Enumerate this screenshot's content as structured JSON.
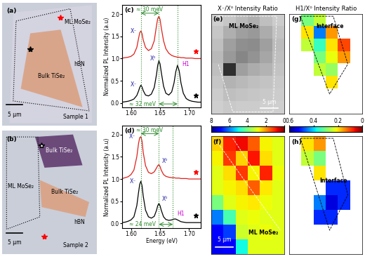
{
  "chart_data": [
    {
      "type": "image",
      "panel_label": "(a)",
      "texts": [
        "ML MoSe₂",
        "hBN",
        "Bulk TiSe₂",
        "Sample 1"
      ],
      "scale_bar": "5 μm"
    },
    {
      "type": "image",
      "panel_label": "(b)",
      "texts": [
        "Bulk TiSe₂",
        "ML MoSe₂",
        "Bulk TiSe₂",
        "hBN",
        "Sample 2"
      ],
      "scale_bar": "5 μm"
    },
    {
      "type": "line",
      "panel_label": "(c)",
      "x": [
        1.585,
        1.59,
        1.595,
        1.6,
        1.605,
        1.61,
        1.613,
        1.615,
        1.617,
        1.619,
        1.621,
        1.625,
        1.63,
        1.635,
        1.64,
        1.644,
        1.646,
        1.648,
        1.65,
        1.652,
        1.656,
        1.66,
        1.665,
        1.67,
        1.674,
        1.677,
        1.68,
        1.683,
        1.686,
        1.69,
        1.695,
        1.7,
        1.705,
        1.71,
        1.715,
        1.72
      ],
      "series": [
        {
          "color": "#e0201b",
          "values": [
            1.01,
            1.02,
            1.03,
            1.05,
            1.1,
            1.25,
            1.45,
            1.58,
            1.62,
            1.56,
            1.42,
            1.25,
            1.18,
            1.22,
            1.4,
            1.75,
            1.9,
            1.95,
            1.88,
            1.7,
            1.4,
            1.22,
            1.12,
            1.07,
            1.05,
            1.04,
            1.03,
            1.03,
            1.02,
            1.02,
            1.01,
            1.01,
            1.01,
            1.0,
            1.0,
            1.0
          ]
        },
        {
          "color": "#000000",
          "values": [
            0.02,
            0.03,
            0.04,
            0.06,
            0.09,
            0.17,
            0.27,
            0.35,
            0.4,
            0.36,
            0.28,
            0.18,
            0.16,
            0.2,
            0.35,
            0.65,
            0.85,
            0.95,
            0.88,
            0.7,
            0.38,
            0.22,
            0.18,
            0.25,
            0.45,
            0.7,
            0.85,
            0.72,
            0.45,
            0.22,
            0.1,
            0.06,
            0.04,
            0.03,
            0.02,
            0.02
          ]
        }
      ],
      "xlim": [
        1.585,
        1.72
      ],
      "xticks": [
        {
          "value": 1.6,
          "label": "1.60"
        },
        1.65,
        {
          "value": 1.7,
          "label": "1.70"
        }
      ],
      "ylim": [
        -0.1,
        2.2
      ],
      "yticks": [
        {
          "value": 0,
          "label": "0.0"
        },
        0.5,
        {
          "value": 1,
          "label": "1.0"
        },
        1.5,
        {
          "value": 2,
          "label": "2.0"
        }
      ],
      "ylabel": "Normalized PL Intensity (a.u)",
      "peak_lines": {
        "x": [
          1.617,
          1.648,
          1.68
        ],
        "color": "#2e8b2e"
      },
      "spacings": [
        {
          "from": 1.617,
          "to": 1.648,
          "y": 2.02,
          "color": "#2e8b2e"
        },
        {
          "from": 1.648,
          "to": 1.68,
          "y": -0.02,
          "color": "#2e8b2e"
        }
      ],
      "annotations": [
        {
          "text": "X⁻",
          "x": 1.604,
          "y": 1.62,
          "color": "#1f1fa0"
        },
        {
          "text": "X⁻",
          "x": 1.604,
          "y": 0.42,
          "color": "#1f1fa0"
        },
        {
          "text": "X⁰",
          "x": 1.638,
          "y": 1.0,
          "color": "#1f1fa0"
        },
        {
          "text": "H1",
          "x": 1.694,
          "y": 0.88,
          "color": "#cc00cc"
        },
        {
          "text": "≈ 30 meV",
          "x": 1.6325,
          "y": 2.1,
          "color": "#2e8b2e"
        },
        {
          "text": "≈ 32 meV",
          "x": 1.62,
          "y": -0.02,
          "color": "#2e8b2e"
        }
      ]
    },
    {
      "type": "line",
      "panel_label": "(d)",
      "x": [
        1.585,
        1.59,
        1.595,
        1.6,
        1.605,
        1.61,
        1.613,
        1.615,
        1.617,
        1.619,
        1.621,
        1.625,
        1.63,
        1.635,
        1.64,
        1.644,
        1.646,
        1.648,
        1.65,
        1.652,
        1.656,
        1.66,
        1.665,
        1.67,
        1.674,
        1.677,
        1.68,
        1.683,
        1.686,
        1.69,
        1.695,
        1.7,
        1.705,
        1.71,
        1.715,
        1.72
      ],
      "series": [
        {
          "color": "#e0201b",
          "values": [
            1.01,
            1.03,
            1.05,
            1.1,
            1.2,
            1.5,
            1.8,
            1.93,
            1.95,
            1.85,
            1.6,
            1.3,
            1.15,
            1.12,
            1.16,
            1.25,
            1.3,
            1.32,
            1.28,
            1.2,
            1.1,
            1.06,
            1.04,
            1.03,
            1.03,
            1.02,
            1.02,
            1.02,
            1.01,
            1.01,
            1.01,
            1.0,
            1.0,
            1.0,
            1.0,
            1.0
          ]
        },
        {
          "color": "#000000",
          "values": [
            0.02,
            0.03,
            0.05,
            0.08,
            0.15,
            0.4,
            0.7,
            0.88,
            0.95,
            0.85,
            0.62,
            0.3,
            0.15,
            0.12,
            0.16,
            0.3,
            0.4,
            0.45,
            0.4,
            0.3,
            0.15,
            0.09,
            0.07,
            0.08,
            0.1,
            0.1,
            0.08,
            0.06,
            0.04,
            0.03,
            0.02,
            0.02,
            0.02,
            0.02,
            0.02,
            0.02
          ]
        }
      ],
      "xlim": [
        1.585,
        1.72
      ],
      "xticks": [
        {
          "value": 1.6,
          "label": "1.60"
        },
        1.65,
        {
          "value": 1.7,
          "label": "1.70"
        }
      ],
      "ylim": [
        -0.1,
        2.2
      ],
      "yticks": [
        {
          "value": 0,
          "label": "0.0"
        },
        0.5,
        {
          "value": 1,
          "label": "1.0"
        },
        1.5,
        {
          "value": 2,
          "label": "2.0"
        }
      ],
      "xlabel": "Energy (eV)",
      "ylabel": "Normalized PL Intensity (a.u)",
      "peak_lines": {
        "x": [
          1.617,
          1.648,
          1.672
        ],
        "color": "#2e8b2e"
      },
      "spacings": [
        {
          "from": 1.617,
          "to": 1.648,
          "y": 2.02,
          "color": "#2e8b2e"
        },
        {
          "from": 1.648,
          "to": 1.672,
          "y": -0.02,
          "color": "#2e8b2e"
        }
      ],
      "annotations": [
        {
          "text": "X⁻",
          "x": 1.602,
          "y": 1.95,
          "color": "#1f1fa0"
        },
        {
          "text": "X⁰",
          "x": 1.658,
          "y": 1.4,
          "color": "#1f1fa0"
        },
        {
          "text": "X⁻",
          "x": 1.603,
          "y": 0.95,
          "color": "#1f1fa0"
        },
        {
          "text": "X⁰",
          "x": 1.658,
          "y": 0.55,
          "color": "#1f1fa0"
        },
        {
          "text": "H1",
          "x": 1.686,
          "y": 0.22,
          "color": "#cc00cc"
        },
        {
          "text": "≈ 30 meV",
          "x": 1.6325,
          "y": 2.1,
          "color": "#2e8b2e"
        },
        {
          "text": "≈ 24 meV",
          "x": 1.62,
          "y": -0.02,
          "color": "#2e8b2e"
        }
      ]
    },
    {
      "type": "colorbar",
      "title": "X⁻/X⁰ Intensity Ratio",
      "for": [
        "(e)",
        "(f)"
      ],
      "range": [
        8,
        0
      ],
      "ticks": [
        8,
        6,
        4,
        2,
        0
      ]
    },
    {
      "type": "colorbar",
      "title": "H1/X⁰ Intensity Ratio",
      "for": [
        "(g)",
        "(h)"
      ],
      "range": [
        0.6,
        0
      ],
      "ticks": [
        0.6,
        0.4,
        0.2,
        0
      ]
    },
    {
      "type": "heatmap",
      "panel_label": "(e)",
      "tick_labels": false,
      "texts": [
        "ML MoSe₂"
      ],
      "scale_bar": "5 μm",
      "cells": [
        [
          1.5,
          1.8,
          2.2,
          2.5,
          2.0,
          1.6
        ],
        [
          1.8,
          2.5,
          3.0,
          3.2,
          2.6,
          1.9
        ],
        [
          2.0,
          3.0,
          3.5,
          3.6,
          3.0,
          2.1
        ],
        [
          2.2,
          3.2,
          3.8,
          3.4,
          2.8,
          2.0
        ],
        [
          2.0,
          6.5,
          3.0,
          2.6,
          2.4,
          1.9
        ],
        [
          1.8,
          2.4,
          2.2,
          2.0,
          1.9,
          1.7
        ],
        [
          1.6,
          2.0,
          1.9,
          1.8,
          1.7,
          1.6
        ],
        [
          1.5,
          1.7,
          1.6,
          1.6,
          1.5,
          1.5
        ]
      ]
    },
    {
      "type": "heatmap",
      "panel_label": "(f)",
      "tick_labels": false,
      "texts": [
        "ML MoSe₂"
      ],
      "scale_bar": "5 μm",
      "cells": [
        [
          2.5,
          1.0,
          0.8,
          1.5,
          2.8,
          3.0
        ],
        [
          2.8,
          1.2,
          2.5,
          0.9,
          2.6,
          3.0
        ],
        [
          3.0,
          2.6,
          1.2,
          2.8,
          1.0,
          2.9
        ],
        [
          3.0,
          2.8,
          2.6,
          1.5,
          2.7,
          3.0
        ],
        [
          4.0,
          3.0,
          2.8,
          2.7,
          2.9,
          3.0
        ],
        [
          6.0,
          4.5,
          3.0,
          2.9,
          3.0,
          3.0
        ],
        [
          7.0,
          6.5,
          3.2,
          3.0,
          2.9,
          3.0
        ],
        [
          7.2,
          7.0,
          5.0,
          3.0,
          3.0,
          3.0
        ]
      ]
    },
    {
      "type": "heatmap",
      "panel_label": "(g)",
      "tick_labels": false,
      "texts": [
        "Interface"
      ],
      "cells": [
        [
          null,
          0.3,
          0.25,
          null,
          null,
          null
        ],
        [
          null,
          0.2,
          0.45,
          0.15,
          null,
          null
        ],
        [
          null,
          0.25,
          0.35,
          0.2,
          0.1,
          null
        ],
        [
          null,
          null,
          0.3,
          0.22,
          0.15,
          null
        ],
        [
          null,
          null,
          0.25,
          0.28,
          null,
          null
        ],
        [
          null,
          null,
          null,
          0.2,
          null,
          null
        ],
        [
          null,
          null,
          null,
          null,
          null,
          null
        ],
        [
          null,
          null,
          null,
          null,
          null,
          null
        ]
      ]
    },
    {
      "type": "heatmap",
      "panel_label": "(h)",
      "tick_labels": false,
      "texts": [
        "Interface"
      ],
      "cells": [
        [
          null,
          0.2,
          0.15,
          null,
          null,
          null
        ],
        [
          null,
          0.25,
          0.3,
          null,
          null,
          null
        ],
        [
          null,
          null,
          0.2,
          null,
          null,
          null
        ],
        [
          null,
          null,
          null,
          0.5,
          0.5,
          null
        ],
        [
          null,
          null,
          0.45,
          0.55,
          0.5,
          null
        ],
        [
          null,
          null,
          0.5,
          0.5,
          null,
          null
        ],
        [
          null,
          null,
          null,
          null,
          null,
          null
        ],
        [
          null,
          null,
          null,
          null,
          null,
          null
        ]
      ]
    }
  ]
}
